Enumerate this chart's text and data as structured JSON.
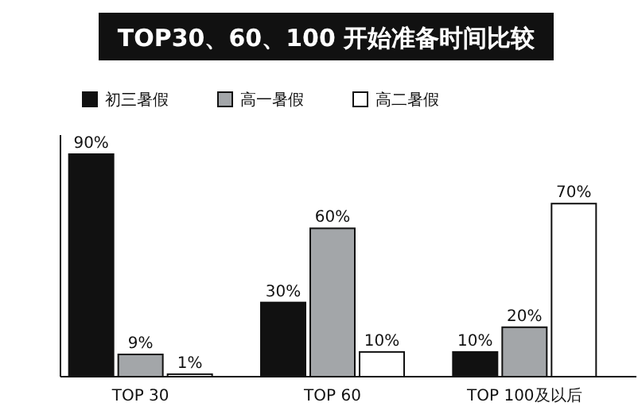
{
  "chart_data": {
    "type": "bar",
    "title": "TOP30、60、100 开始准备时间比较",
    "categories": [
      "TOP 30",
      "TOP 60",
      "TOP 100及以后"
    ],
    "legend": "top left",
    "series": [
      {
        "name": "初三暑假",
        "color": "#111111",
        "values": [
          90,
          30,
          10
        ],
        "value_labels": [
          "90%",
          "30%",
          "10%"
        ]
      },
      {
        "name": "高一暑假",
        "color": "#a3a6a9",
        "values": [
          9,
          60,
          20
        ],
        "value_labels": [
          "9%",
          "60%",
          "20%"
        ]
      },
      {
        "name": "高二暑假",
        "color": "#ffffff",
        "values": [
          1,
          10,
          70
        ],
        "value_labels": [
          "1%",
          "10%",
          "70%"
        ]
      }
    ]
  }
}
